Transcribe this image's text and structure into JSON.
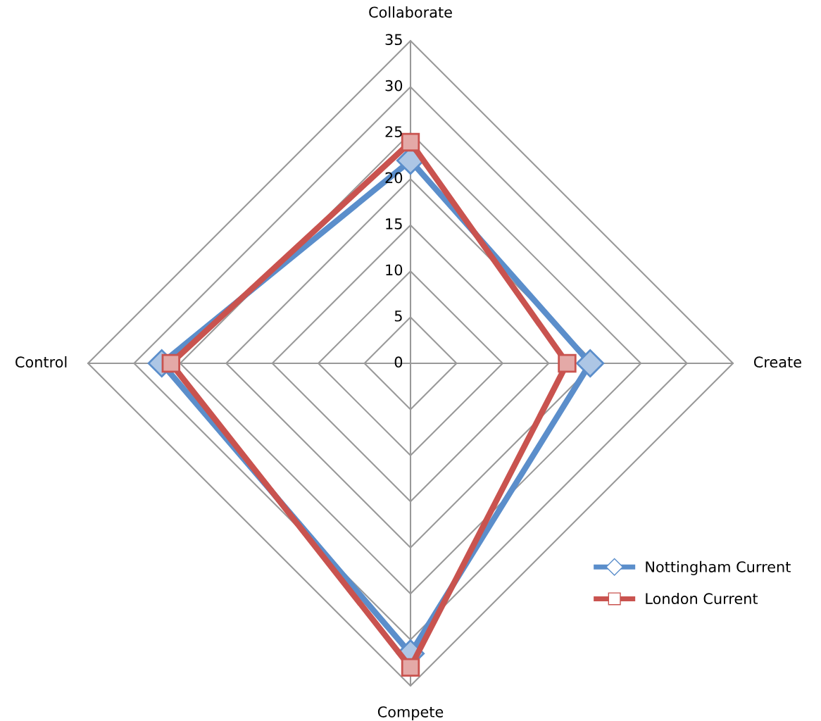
{
  "chart_data": {
    "type": "radar",
    "categories": [
      "Collaborate",
      "Create",
      "Compete",
      "Control"
    ],
    "series": [
      {
        "name": "Nottingham Current",
        "color": "#5b8ecb",
        "marker": "diamond",
        "values": [
          22,
          19.5,
          31.5,
          27
        ]
      },
      {
        "name": "London Current",
        "color": "#c9534f",
        "marker": "square",
        "values": [
          24,
          17,
          33,
          26
        ]
      }
    ],
    "ylim": [
      0,
      35
    ],
    "yticks": [
      0,
      5,
      10,
      15,
      20,
      25,
      30,
      35
    ],
    "grid": true,
    "legend": "right"
  }
}
